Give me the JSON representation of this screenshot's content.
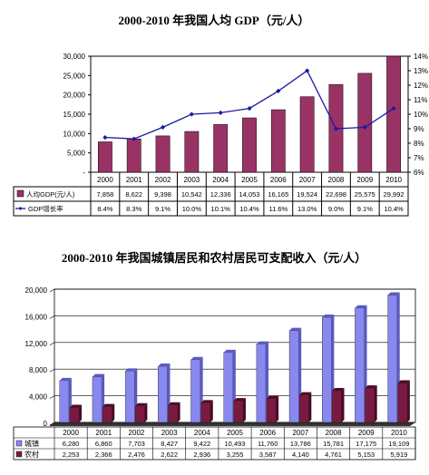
{
  "chart_data": [
    {
      "type": "bar",
      "title": "2000-2010 年我国人均 GDP（元/人）",
      "categories": [
        "2000",
        "2001",
        "2002",
        "2003",
        "2004",
        "2005",
        "2006",
        "2007",
        "2008",
        "2009",
        "2010"
      ],
      "series": [
        {
          "name": "人均GDP(元/人)",
          "type": "bar",
          "axis": "left",
          "color": "#993366",
          "values": [
            7858,
            8622,
            9398,
            10542,
            12336,
            14053,
            16165,
            19524,
            22698,
            25575,
            29992
          ],
          "labels": [
            "7,858",
            "8,622",
            "9,398",
            "10,542",
            "12,336",
            "14,053",
            "16,165",
            "19,524",
            "22,698",
            "25,575",
            "29,992"
          ]
        },
        {
          "name": "GDP增长率",
          "type": "line",
          "axis": "right",
          "color": "#1a1a9c",
          "values": [
            8.4,
            8.3,
            9.1,
            10.0,
            10.1,
            10.4,
            11.6,
            13.0,
            9.0,
            9.1,
            10.4
          ],
          "labels": [
            "8.4%",
            "8.3%",
            "9.1%",
            "10.0%",
            "10.1%",
            "10.4%",
            "11.6%",
            "13.0%",
            "9.0%",
            "9.1%",
            "10.4%"
          ]
        }
      ],
      "y_left_ticks": [
        "-",
        "5,000",
        "10,000",
        "15,000",
        "20,000",
        "25,000",
        "30,000"
      ],
      "ylim_left": [
        0,
        30000
      ],
      "y_right_ticks": [
        "6%",
        "7%",
        "8%",
        "9%",
        "10%",
        "11%",
        "12%",
        "13%",
        "14%"
      ],
      "ylim_right": [
        6,
        14
      ],
      "grid": false,
      "legend": "data table below the chart"
    },
    {
      "type": "bar",
      "title": "2000-2010 年我国城镇居民和农村居民可支配收入（元/人）",
      "categories": [
        "2000",
        "2001",
        "2002",
        "2003",
        "2004",
        "2005",
        "2006",
        "2007",
        "2008",
        "2009",
        "2010"
      ],
      "series": [
        {
          "name": "城镇",
          "color": "#8888ee",
          "values": [
            6280,
            6860,
            7703,
            8427,
            9422,
            10493,
            11760,
            13786,
            15781,
            17175,
            19109
          ],
          "labels": [
            "6,280",
            "6,860",
            "7,703",
            "8,427",
            "9,422",
            "10,493",
            "11,760",
            "13,786",
            "15,781",
            "17,175",
            "19,109"
          ]
        },
        {
          "name": "农村",
          "color": "#7a1a40",
          "values": [
            2253,
            2366,
            2476,
            2622,
            2936,
            3255,
            3587,
            4140,
            4761,
            5153,
            5919
          ],
          "labels": [
            "2,253",
            "2,366",
            "2,476",
            "2,622",
            "2,936",
            "3,255",
            "3,587",
            "4,140",
            "4,761",
            "5,153",
            "5,919"
          ]
        }
      ],
      "y_ticks": [
        "0",
        "4,000",
        "8,000",
        "12,000",
        "16,000",
        "20,000"
      ],
      "ylim": [
        0,
        20000
      ],
      "grid": true,
      "legend": "data table below the chart"
    }
  ]
}
